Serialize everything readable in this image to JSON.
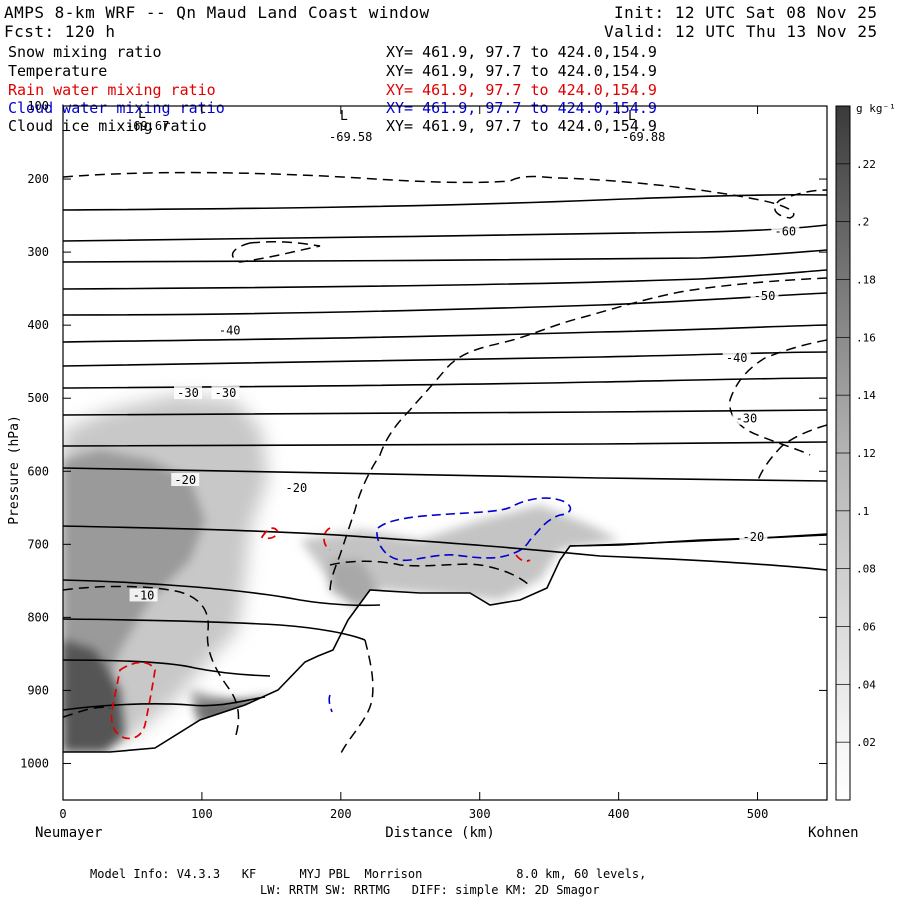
{
  "header": {
    "title": "AMPS 8-km WRF -- Qn Maud Land Coast window",
    "forecast": "Fcst: 120 h",
    "init": "Init: 12 UTC Sat 08 Nov 25",
    "valid": "Valid: 12 UTC Thu 13 Nov 25"
  },
  "fields": [
    {
      "name": "Snow mixing ratio",
      "xy": "XY= 461.9, 97.7 to 424.0,154.9",
      "color": "#000000"
    },
    {
      "name": "Temperature",
      "xy": "XY= 461.9, 97.7 to 424.0,154.9",
      "color": "#000000"
    },
    {
      "name": "Rain water mixing ratio",
      "xy": "XY= 461.9, 97.7 to 424.0,154.9",
      "color": "#e00000"
    },
    {
      "name": "Cloud water mixing ratio",
      "xy": "XY= 461.9, 97.7 to 424.0,154.9",
      "color": "#0000d0"
    },
    {
      "name": "Cloud ice mixing ratio",
      "xy": "XY= 461.9, 97.7 to 424.0,154.9",
      "color": "#000000"
    }
  ],
  "pressure_markers": [
    {
      "symbol": "L",
      "value": "-69.67"
    },
    {
      "symbol": "L",
      "value": "-69.58"
    },
    {
      "symbol": "L",
      "value": "-69.88"
    }
  ],
  "footer": {
    "line1": "Model Info: V4.3.3   KF      MYJ PBL  Morrison             8.0 km, 60 levels,",
    "line2": "LW: RRTM SW: RRTMG   DIFF: simple KM: 2D Smagor"
  },
  "chart_data": {
    "type": "cross-section contour",
    "xlabel": "Distance (km)",
    "ylabel": "Pressure (hPa)",
    "xlim": [
      0,
      550
    ],
    "ylim": [
      1050,
      100
    ],
    "x_ticks": [
      0,
      100,
      200,
      300,
      400,
      500
    ],
    "y_ticks": [
      100,
      200,
      300,
      400,
      500,
      600,
      700,
      800,
      900,
      1000
    ],
    "x_end_labels": {
      "left": "Neumayer",
      "right": "Kohnen"
    },
    "colorbar": {
      "unit": "g kg⁻¹",
      "ticks": [
        ".02",
        ".04",
        ".06",
        ".08",
        ".1",
        ".12",
        ".14",
        ".16",
        ".18",
        ".2",
        ".22"
      ]
    },
    "temperature_labels": [
      {
        "text": "-60",
        "x": 520,
        "p": 272
      },
      {
        "text": "-50",
        "x": 505,
        "p": 360
      },
      {
        "text": "-40",
        "x": 120,
        "p": 407
      },
      {
        "text": "-40",
        "x": 485,
        "p": 445
      },
      {
        "text": "-30",
        "x": 90,
        "p": 493
      },
      {
        "text": "-30",
        "x": 117,
        "p": 493
      },
      {
        "text": "-30",
        "x": 492,
        "p": 528
      },
      {
        "text": "-20",
        "x": 88,
        "p": 612
      },
      {
        "text": "-20",
        "x": 168,
        "p": 623
      },
      {
        "text": "-20",
        "x": 497,
        "p": 690
      },
      {
        "text": "-10",
        "x": 58,
        "p": 770
      }
    ]
  }
}
